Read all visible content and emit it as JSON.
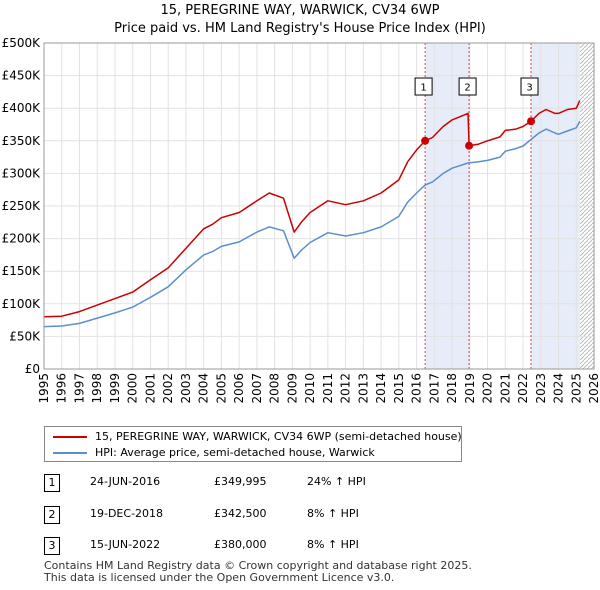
{
  "title": {
    "line1": "15, PEREGRINE WAY, WARWICK, CV34 6WP",
    "line2": "Price paid vs. HM Land Registry's House Price Index (HPI)"
  },
  "chart_data": {
    "type": "line",
    "ylim": [
      0,
      500000
    ],
    "xlim": [
      1995,
      2026
    ],
    "y_ticks": [
      {
        "value": 0,
        "label": "£0"
      },
      {
        "value": 50000,
        "label": "£50K"
      },
      {
        "value": 100000,
        "label": "£100K"
      },
      {
        "value": 150000,
        "label": "£150K"
      },
      {
        "value": 200000,
        "label": "£200K"
      },
      {
        "value": 250000,
        "label": "£250K"
      },
      {
        "value": 300000,
        "label": "£300K"
      },
      {
        "value": 350000,
        "label": "£350K"
      },
      {
        "value": 400000,
        "label": "£400K"
      },
      {
        "value": 450000,
        "label": "£450K"
      },
      {
        "value": 500000,
        "label": "£500K"
      }
    ],
    "x_ticks": [
      1995,
      1996,
      1997,
      1998,
      1999,
      2000,
      2001,
      2002,
      2003,
      2004,
      2005,
      2006,
      2007,
      2008,
      2009,
      2010,
      2011,
      2012,
      2013,
      2014,
      2015,
      2016,
      2017,
      2018,
      2019,
      2020,
      2021,
      2022,
      2023,
      2024,
      2025,
      2026
    ],
    "series": [
      {
        "name": "15, PEREGRINE WAY, WARWICK, CV34 6WP (semi-detached house)",
        "color": "#cc0000",
        "x": [
          1995.0,
          1996.0,
          1997.0,
          1998.0,
          1999.0,
          2000.0,
          2001.0,
          2002.0,
          2003.0,
          2004.0,
          2004.5,
          2005.0,
          2006.0,
          2007.0,
          2007.7,
          2008.5,
          2009.1,
          2009.5,
          2010.0,
          2011.0,
          2012.0,
          2013.0,
          2014.0,
          2015.0,
          2015.5,
          2016.0,
          2016.48,
          2016.9,
          2017.5,
          2018.0,
          2018.9,
          2018.96,
          2019.5,
          2020.0,
          2020.7,
          2021.0,
          2021.6,
          2022.0,
          2022.45,
          2022.9,
          2023.3,
          2023.8,
          2024.0,
          2024.5,
          2025.0,
          2025.2
        ],
        "values": [
          80000,
          81000,
          88000,
          98000,
          108000,
          118000,
          137000,
          155000,
          185000,
          215000,
          222000,
          232000,
          240000,
          258000,
          270000,
          262000,
          210000,
          225000,
          240000,
          258000,
          252000,
          258000,
          270000,
          290000,
          318000,
          336000,
          349995,
          355000,
          372000,
          382000,
          392000,
          342500,
          345000,
          350000,
          356000,
          366000,
          368000,
          372000,
          380000,
          392000,
          398000,
          392000,
          392000,
          398000,
          400000,
          412000
        ]
      },
      {
        "name": "HPI: Average price, semi-detached house, Warwick",
        "color": "#5b8fcc",
        "x": [
          1995.0,
          1996.0,
          1997.0,
          1998.0,
          1999.0,
          2000.0,
          2001.0,
          2002.0,
          2003.0,
          2004.0,
          2004.5,
          2005.0,
          2006.0,
          2007.0,
          2007.7,
          2008.5,
          2009.1,
          2009.5,
          2010.0,
          2011.0,
          2012.0,
          2013.0,
          2014.0,
          2015.0,
          2015.5,
          2016.0,
          2016.48,
          2016.9,
          2017.5,
          2018.0,
          2018.9,
          2019.5,
          2020.0,
          2020.7,
          2021.0,
          2021.6,
          2022.0,
          2022.45,
          2022.9,
          2023.3,
          2023.8,
          2024.0,
          2024.5,
          2025.0,
          2025.2
        ],
        "values": [
          65000,
          66000,
          70000,
          78000,
          86000,
          95000,
          110000,
          126000,
          152000,
          175000,
          180000,
          188000,
          195000,
          210000,
          218000,
          212000,
          170000,
          182000,
          194000,
          209000,
          204000,
          209000,
          218000,
          234000,
          256000,
          270000,
          282000,
          287000,
          300000,
          308000,
          316000,
          318000,
          320000,
          325000,
          334000,
          338000,
          342000,
          352000,
          362000,
          368000,
          362000,
          360000,
          365000,
          370000,
          380000
        ]
      }
    ],
    "sales": [
      {
        "id": "1",
        "x": 2016.48,
        "value": 349995
      },
      {
        "id": "2",
        "x": 2018.96,
        "value": 342500
      },
      {
        "id": "3",
        "x": 2022.45,
        "value": 380000
      }
    ],
    "shaded_ranges": [
      [
        2016.48,
        2018.96
      ],
      [
        2022.45,
        2025.2
      ]
    ],
    "hatched_from": 2025.2
  },
  "legend": [
    {
      "label": "15, PEREGRINE WAY, WARWICK, CV34 6WP (semi-detached house)",
      "color": "#cc0000"
    },
    {
      "label": "HPI: Average price, semi-detached house, Warwick",
      "color": "#5b8fcc"
    }
  ],
  "sales_table": [
    {
      "num": "1",
      "date": "24-JUN-2016",
      "price": "£349,995",
      "hpi": "24% ↑ HPI"
    },
    {
      "num": "2",
      "date": "19-DEC-2018",
      "price": "£342,500",
      "hpi": "8% ↑ HPI"
    },
    {
      "num": "3",
      "date": "15-JUN-2022",
      "price": "£380,000",
      "hpi": "8% ↑ HPI"
    }
  ],
  "footer": {
    "line1": "Contains HM Land Registry data © Crown copyright and database right 2025.",
    "line2": "This data is licensed under the Open Government Licence v3.0."
  }
}
